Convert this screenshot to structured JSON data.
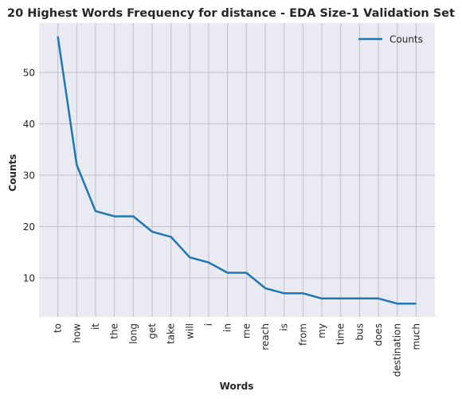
{
  "chart_data": {
    "type": "line",
    "title": "20 Highest Words Frequency for distance - EDA Size-1 Validation Set",
    "xlabel": "Words",
    "ylabel": "Counts",
    "categories": [
      "to",
      "how",
      "it",
      "the",
      "long",
      "get",
      "take",
      "will",
      "i",
      "in",
      "me",
      "reach",
      "is",
      "from",
      "my",
      "time",
      "bus",
      "does",
      "destination",
      "much"
    ],
    "series": [
      {
        "name": "Counts",
        "values": [
          57,
          32,
          23,
          22,
          22,
          19,
          18,
          14,
          13,
          11,
          11,
          8,
          7,
          7,
          6,
          6,
          6,
          6,
          5,
          5
        ]
      }
    ],
    "ylim": [
      2.4,
      59.6
    ],
    "yticks": [
      10,
      20,
      30,
      40,
      50
    ],
    "grid": true,
    "legend": "top-right",
    "colors": {
      "line": "#1f77b4",
      "background": "#eaeaf2",
      "grid": "#c0c0c8"
    }
  }
}
